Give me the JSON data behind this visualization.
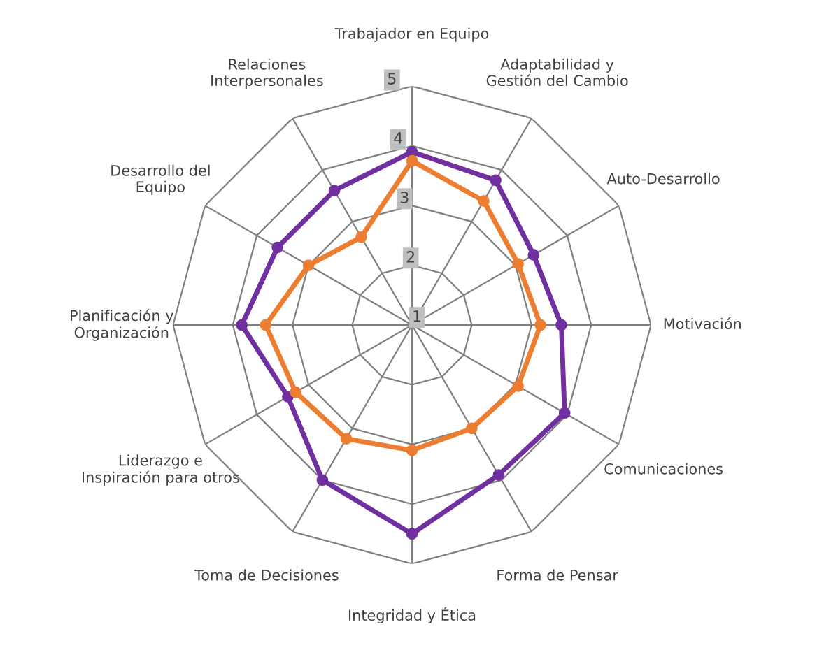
{
  "chart_data": {
    "type": "radar",
    "categories": [
      "Trabajador en Equipo",
      "Adaptabilidad y\nGestión del Cambio",
      "Auto-Desarrollo",
      "Motivación",
      "Comunicaciones",
      "Forma de Pensar",
      "Integridad y Ética",
      "Toma de Decisiones",
      "Liderazgo e\nInspiración para otros",
      "Planificación y\nOrganización",
      "Desarrollo del\nEquipo",
      "Relaciones\nInterpersonales"
    ],
    "series": [
      {
        "color": "#7030a0",
        "values": [
          3.9,
          3.8,
          3.35,
          3.5,
          3.95,
          3.9,
          4.5,
          4.0,
          3.4,
          3.85,
          3.6,
          3.6
        ]
      },
      {
        "color": "#ed7d31",
        "values": [
          3.75,
          3.4,
          3.05,
          3.15,
          3.05,
          3.0,
          3.1,
          3.2,
          3.25,
          3.45,
          3.0,
          2.7
        ]
      }
    ],
    "ylim": [
      1,
      5
    ],
    "yticks": [
      1,
      2,
      3,
      4,
      5
    ],
    "marker": "circle",
    "grid": true
  }
}
